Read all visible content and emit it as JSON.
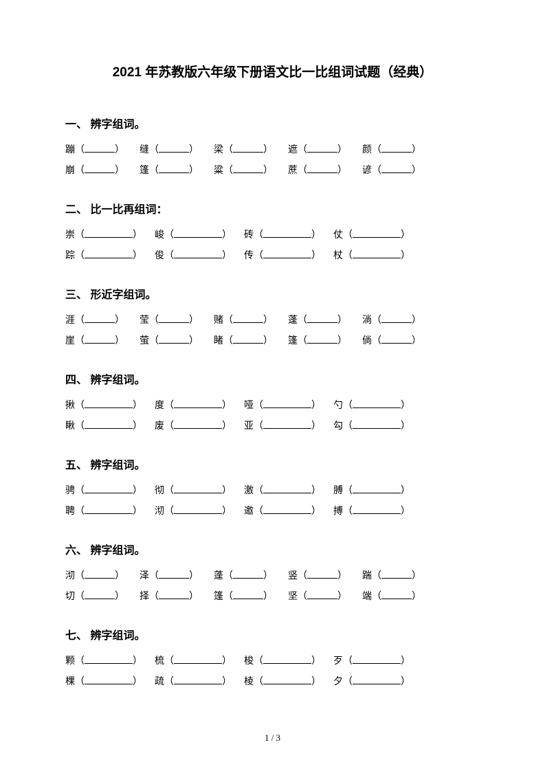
{
  "title": "2021 年苏教版六年级下册语文比一比组词试题（经典）",
  "pageNumber": "1 / 3",
  "style": {
    "blank_short": 44,
    "blank_medium": 62,
    "blank_long": 70,
    "gap_small": 22,
    "gap_medium": 14,
    "gap_large": 18
  },
  "sections": [
    {
      "header": "一、 辨字组词。",
      "layout": "five",
      "rows": [
        [
          "蹦",
          "缝",
          "梁",
          "遮",
          "颜"
        ],
        [
          "崩",
          "篷",
          "粱",
          "蔗",
          "谚"
        ]
      ]
    },
    {
      "header": "二、 比一比再组词：",
      "layout": "four",
      "rows": [
        [
          "崇",
          "峻",
          "砖",
          "仗"
        ],
        [
          "踪",
          "俊",
          "传",
          "杖"
        ]
      ]
    },
    {
      "header": "三、 形近字组词。",
      "layout": "five",
      "rows": [
        [
          "涯",
          "莹",
          "赌",
          "蓬",
          "淌"
        ],
        [
          "崖",
          "萤",
          "睹",
          "篷",
          "倘"
        ]
      ]
    },
    {
      "header": "四、 辨字组词。",
      "layout": "four",
      "rows": [
        [
          "揪",
          "度",
          "哑",
          "勺"
        ],
        [
          "瞅",
          "废",
          "亚",
          "勾"
        ]
      ]
    },
    {
      "header": "五、 辨字组词。",
      "layout": "four",
      "rows": [
        [
          "骋",
          "彻",
          "激",
          "膊"
        ],
        [
          "聘",
          "沏",
          "邀",
          "搏"
        ]
      ]
    },
    {
      "header": "六、 辨字组词。",
      "layout": "five",
      "rows": [
        [
          "沏",
          "泽",
          "蓬",
          "竖",
          "踹"
        ],
        [
          "切",
          "择",
          "篷",
          "坚",
          "端"
        ]
      ]
    },
    {
      "header": "七、 辨字组词。",
      "layout": "four",
      "rows": [
        [
          "颗",
          "梳",
          "梭",
          "歹"
        ],
        [
          "棵",
          "疏",
          "棱",
          "夕"
        ]
      ]
    }
  ]
}
